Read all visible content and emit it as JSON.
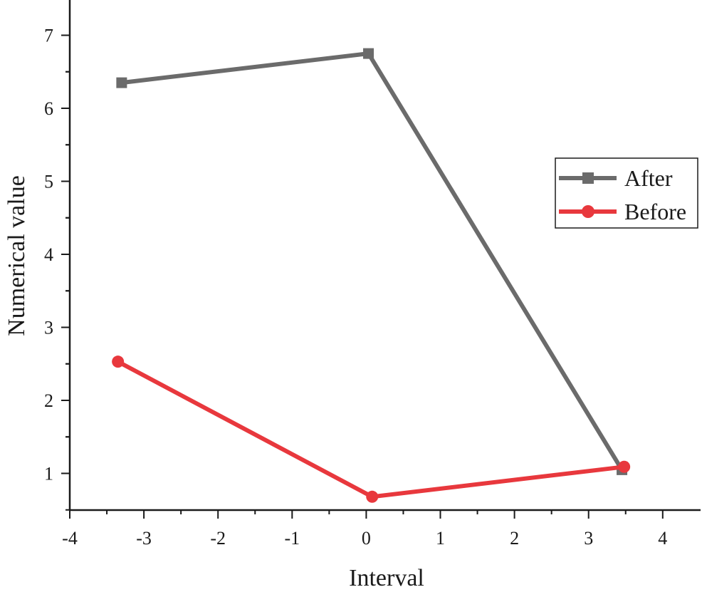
{
  "chart_data": {
    "type": "line",
    "title": "",
    "xlabel": "Interval",
    "ylabel": "Numerical value",
    "xlim": [
      -4,
      4.5
    ],
    "ylim": [
      0.5,
      7.5
    ],
    "x_ticks": [
      "-4",
      "-3",
      "-2",
      "-1",
      "0",
      "1",
      "2",
      "3",
      "4"
    ],
    "y_ticks": [
      "1",
      "2",
      "3",
      "4",
      "5",
      "6",
      "7"
    ],
    "grid": false,
    "legend_position": "right",
    "series": [
      {
        "name": "After",
        "color": "#6b6b6b",
        "marker": "square",
        "x": [
          -3.3,
          0.03,
          3.45
        ],
        "y": [
          6.35,
          6.75,
          1.05
        ]
      },
      {
        "name": "Before",
        "color": "#e8383d",
        "marker": "circle",
        "x": [
          -3.35,
          0.08,
          3.48
        ],
        "y": [
          2.53,
          0.68,
          1.09
        ]
      }
    ]
  }
}
